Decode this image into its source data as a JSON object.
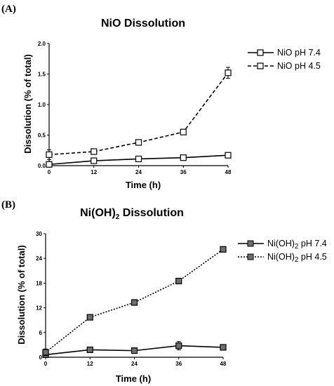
{
  "chart_data": [
    {
      "panel": "(A)",
      "type": "line",
      "title": "NiO Dissolution",
      "xlabel": "Time (h)",
      "ylabel": "Dissolution (% of total)",
      "x": [
        0,
        12,
        24,
        36,
        48
      ],
      "xticks": [
        "0",
        "12",
        "24",
        "36",
        "48"
      ],
      "xlim": [
        0,
        48
      ],
      "yticks": [
        "0.0",
        "0.5",
        "1.0",
        "1.5",
        "2.0"
      ],
      "ylim": [
        0,
        2.0
      ],
      "legend_position": "right",
      "marker": "open-square",
      "series": [
        {
          "name": "NiO pH 7.4",
          "dash": "solid",
          "values": [
            0.02,
            0.08,
            0.11,
            0.13,
            0.17
          ],
          "errors": [
            0.02,
            0.02,
            0.01,
            0.01,
            0.01
          ]
        },
        {
          "name": "NiO pH 4.5",
          "dash": "dashed",
          "values": [
            0.18,
            0.23,
            0.38,
            0.55,
            1.52
          ],
          "errors": [
            0.08,
            0.02,
            0.02,
            0.02,
            0.09
          ]
        }
      ]
    },
    {
      "panel": "(B)",
      "type": "line",
      "title_main": "Ni(OH)",
      "title_sub": "2",
      "title_rest": " Dissolution",
      "xlabel": "Time (h)",
      "ylabel": "Dissolution (% of total)",
      "x": [
        0,
        12,
        24,
        36,
        48
      ],
      "xticks": [
        "0",
        "12",
        "24",
        "36",
        "48"
      ],
      "xlim": [
        0,
        48
      ],
      "yticks": [
        "0",
        "6",
        "12",
        "18",
        "24",
        "30"
      ],
      "ylim": [
        0,
        30
      ],
      "legend_position": "right",
      "marker": "filled-square",
      "series": [
        {
          "name_main": "Ni(OH)",
          "name_sub": "2",
          "name_rest": " pH 7.4",
          "dash": "solid",
          "values": [
            0.6,
            1.8,
            1.6,
            2.8,
            2.4
          ],
          "errors": [
            0.3,
            0.3,
            0.2,
            1.0,
            0.3
          ]
        },
        {
          "name_main": "Ni(OH)",
          "name_sub": "2",
          "name_rest": " pH 4.5",
          "dash": "dotted",
          "values": [
            1.2,
            9.7,
            13.3,
            18.5,
            26.2
          ],
          "errors": [
            0.8,
            0.3,
            0.3,
            0.3,
            0.5
          ]
        }
      ]
    }
  ]
}
